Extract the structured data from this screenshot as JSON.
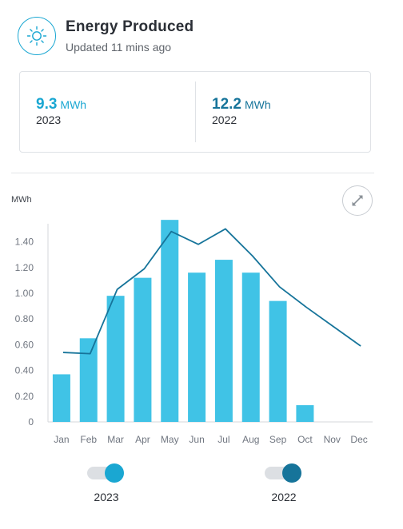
{
  "header": {
    "icon": "sun-icon",
    "title": "Energy Produced",
    "subtitle": "Updated 11 mins ago"
  },
  "summary": [
    {
      "value": "9.3",
      "unit": "MWh",
      "year": "2023",
      "color": "#1aa7d2"
    },
    {
      "value": "12.2",
      "unit": "MWh",
      "year": "2022",
      "color": "#16749a"
    }
  ],
  "expand_icon": "expand-icon",
  "legend": [
    {
      "label": "2023",
      "enabled": true,
      "color": "#1aa7d2"
    },
    {
      "label": "2022",
      "enabled": true,
      "color": "#16749a"
    }
  ],
  "chart_data": {
    "type": "bar",
    "ylabel": "MWh",
    "ylim": [
      0,
      1.54
    ],
    "yticks": [
      "0",
      "0.20",
      "0.40",
      "0.60",
      "0.80",
      "1.00",
      "1.20",
      "1.40"
    ],
    "categories": [
      "Jan",
      "Feb",
      "Mar",
      "Apr",
      "May",
      "Jun",
      "Jul",
      "Aug",
      "Sep",
      "Oct",
      "Nov",
      "Dec"
    ],
    "series": [
      {
        "name": "2023",
        "kind": "bar",
        "color": "#40c3e6",
        "values": [
          0.37,
          0.65,
          0.98,
          1.12,
          1.57,
          1.16,
          1.26,
          1.16,
          0.94,
          0.13,
          null,
          null
        ]
      },
      {
        "name": "2022",
        "kind": "line",
        "color": "#16749a",
        "values": [
          0.54,
          0.53,
          1.03,
          1.19,
          1.48,
          1.38,
          1.5,
          1.29,
          1.05,
          0.89,
          0.74,
          0.59
        ]
      }
    ],
    "grid": false,
    "legend_position": "bottom"
  }
}
